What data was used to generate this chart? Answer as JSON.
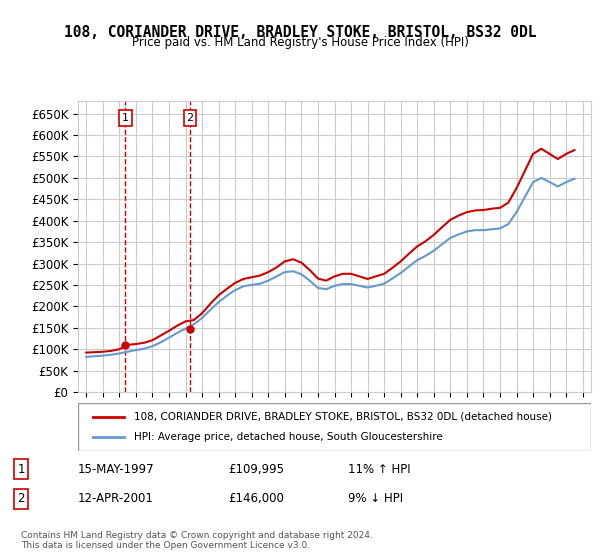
{
  "title": "108, CORIANDER DRIVE, BRADLEY STOKE, BRISTOL, BS32 0DL",
  "subtitle": "Price paid vs. HM Land Registry's House Price Index (HPI)",
  "ylabel_ticks": [
    "£0",
    "£50K",
    "£100K",
    "£150K",
    "£200K",
    "£250K",
    "£300K",
    "£350K",
    "£400K",
    "£450K",
    "£500K",
    "£550K",
    "£600K",
    "£650K"
  ],
  "ytick_vals": [
    0,
    50000,
    100000,
    150000,
    200000,
    250000,
    300000,
    350000,
    400000,
    450000,
    500000,
    550000,
    600000,
    650000
  ],
  "ylim": [
    0,
    680000
  ],
  "xlim_start": 1994.5,
  "xlim_end": 2025.5,
  "hpi_color": "#6699cc",
  "price_color": "#cc0000",
  "vline_color": "#cc0000",
  "grid_color": "#cccccc",
  "background_color": "#ffffff",
  "legend_label_price": "108, CORIANDER DRIVE, BRADLEY STOKE, BRISTOL, BS32 0DL (detached house)",
  "legend_label_hpi": "HPI: Average price, detached house, South Gloucestershire",
  "sale1_label": "1",
  "sale1_date": "15-MAY-1997",
  "sale1_price": "£109,995",
  "sale1_hpi": "11% ↑ HPI",
  "sale1_year": 1997.37,
  "sale1_value": 109995,
  "sale2_label": "2",
  "sale2_date": "12-APR-2001",
  "sale2_price": "£146,000",
  "sale2_hpi": "9% ↓ HPI",
  "sale2_year": 2001.27,
  "sale2_value": 146000,
  "footer": "Contains HM Land Registry data © Crown copyright and database right 2024.\nThis data is licensed under the Open Government Licence v3.0.",
  "hpi_years": [
    1995.0,
    1995.5,
    1996.0,
    1996.5,
    1997.0,
    1997.5,
    1998.0,
    1998.5,
    1999.0,
    1999.5,
    2000.0,
    2000.5,
    2001.0,
    2001.5,
    2002.0,
    2002.5,
    2003.0,
    2003.5,
    2004.0,
    2004.5,
    2005.0,
    2005.5,
    2006.0,
    2006.5,
    2007.0,
    2007.5,
    2008.0,
    2008.5,
    2009.0,
    2009.5,
    2010.0,
    2010.5,
    2011.0,
    2011.5,
    2012.0,
    2012.5,
    2013.0,
    2013.5,
    2014.0,
    2014.5,
    2015.0,
    2015.5,
    2016.0,
    2016.5,
    2017.0,
    2017.5,
    2018.0,
    2018.5,
    2019.0,
    2019.5,
    2020.0,
    2020.5,
    2021.0,
    2021.5,
    2022.0,
    2022.5,
    2023.0,
    2023.5,
    2024.0,
    2024.5
  ],
  "hpi_values": [
    82000,
    83500,
    85000,
    87000,
    90000,
    94000,
    98000,
    101000,
    107000,
    116000,
    127000,
    138000,
    148000,
    158000,
    173000,
    192000,
    210000,
    225000,
    238000,
    247000,
    250000,
    253000,
    260000,
    270000,
    280000,
    282000,
    275000,
    260000,
    243000,
    240000,
    248000,
    252000,
    252000,
    248000,
    244000,
    248000,
    253000,
    265000,
    278000,
    293000,
    308000,
    318000,
    330000,
    345000,
    360000,
    368000,
    375000,
    378000,
    378000,
    380000,
    382000,
    392000,
    420000,
    455000,
    490000,
    500000,
    490000,
    480000,
    490000,
    498000
  ],
  "price_years": [
    1995.0,
    1995.5,
    1996.0,
    1996.5,
    1997.0,
    1997.5,
    1998.0,
    1998.5,
    1999.0,
    1999.5,
    2000.0,
    2000.5,
    2001.0,
    2001.5,
    2002.0,
    2002.5,
    2003.0,
    2003.5,
    2004.0,
    2004.5,
    2005.0,
    2005.5,
    2006.0,
    2006.5,
    2007.0,
    2007.5,
    2008.0,
    2008.5,
    2009.0,
    2009.5,
    2010.0,
    2010.5,
    2011.0,
    2011.5,
    2012.0,
    2012.5,
    2013.0,
    2013.5,
    2014.0,
    2014.5,
    2015.0,
    2015.5,
    2016.0,
    2016.5,
    2017.0,
    2017.5,
    2018.0,
    2018.5,
    2019.0,
    2019.5,
    2020.0,
    2020.5,
    2021.0,
    2021.5,
    2022.0,
    2022.5,
    2023.0,
    2023.5,
    2024.0,
    2024.5
  ],
  "price_values": [
    92000,
    93000,
    94000,
    96000,
    100000,
    109995,
    112000,
    115000,
    121000,
    132000,
    143000,
    155000,
    165000,
    168000,
    184000,
    206000,
    226000,
    241000,
    255000,
    264000,
    268000,
    272000,
    280000,
    291000,
    305000,
    310000,
    302000,
    285000,
    265000,
    260000,
    270000,
    276000,
    276000,
    270000,
    264000,
    270000,
    276000,
    290000,
    305000,
    323000,
    340000,
    352000,
    367000,
    385000,
    402000,
    412000,
    420000,
    424000,
    425000,
    428000,
    430000,
    442000,
    476000,
    516000,
    556000,
    568000,
    556000,
    544000,
    556000,
    565000
  ]
}
